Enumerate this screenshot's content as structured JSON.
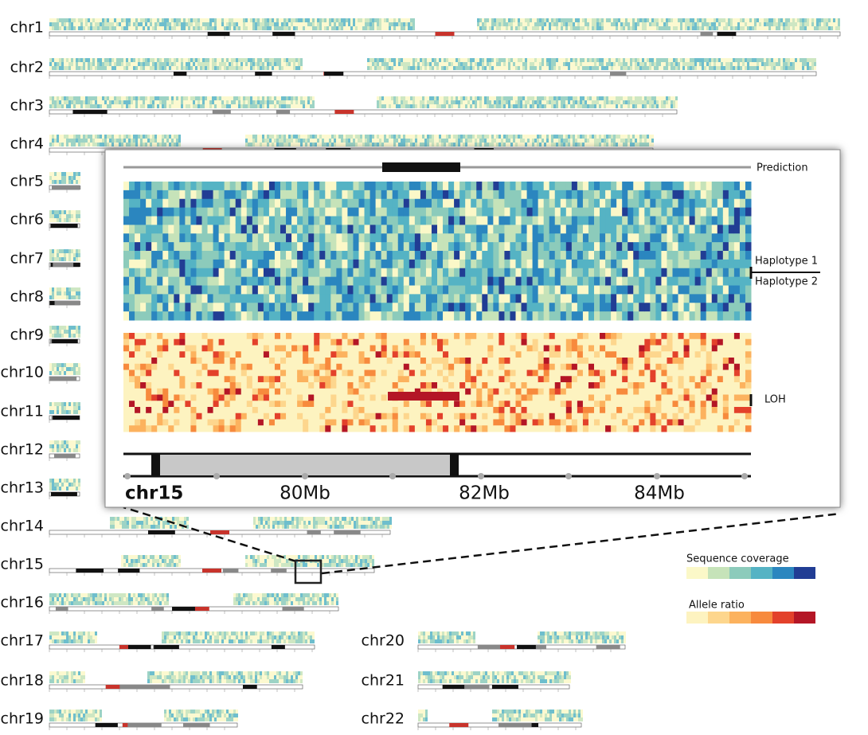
{
  "chromosomes": [
    "chr1",
    "chr2",
    "chr3",
    "chr4",
    "chr5",
    "chr6",
    "chr7",
    "chr8",
    "chr9",
    "chr10",
    "chr11",
    "chr12",
    "chr13",
    "chr14",
    "chr15",
    "chr16",
    "chr17",
    "chr18",
    "chr19",
    "chr20",
    "chr21",
    "chr22"
  ],
  "inset": {
    "prediction": "Prediction",
    "haplotype_1": "Haplotype 1",
    "haplotype_2": "Haplotype 2",
    "loh": "LOH",
    "chromosome": "chr15",
    "positions": [
      "80Mb",
      "82Mb",
      "84Mb"
    ]
  },
  "legend": {
    "coverage": "Sequence coverage",
    "allele": "Allele ratio"
  }
}
